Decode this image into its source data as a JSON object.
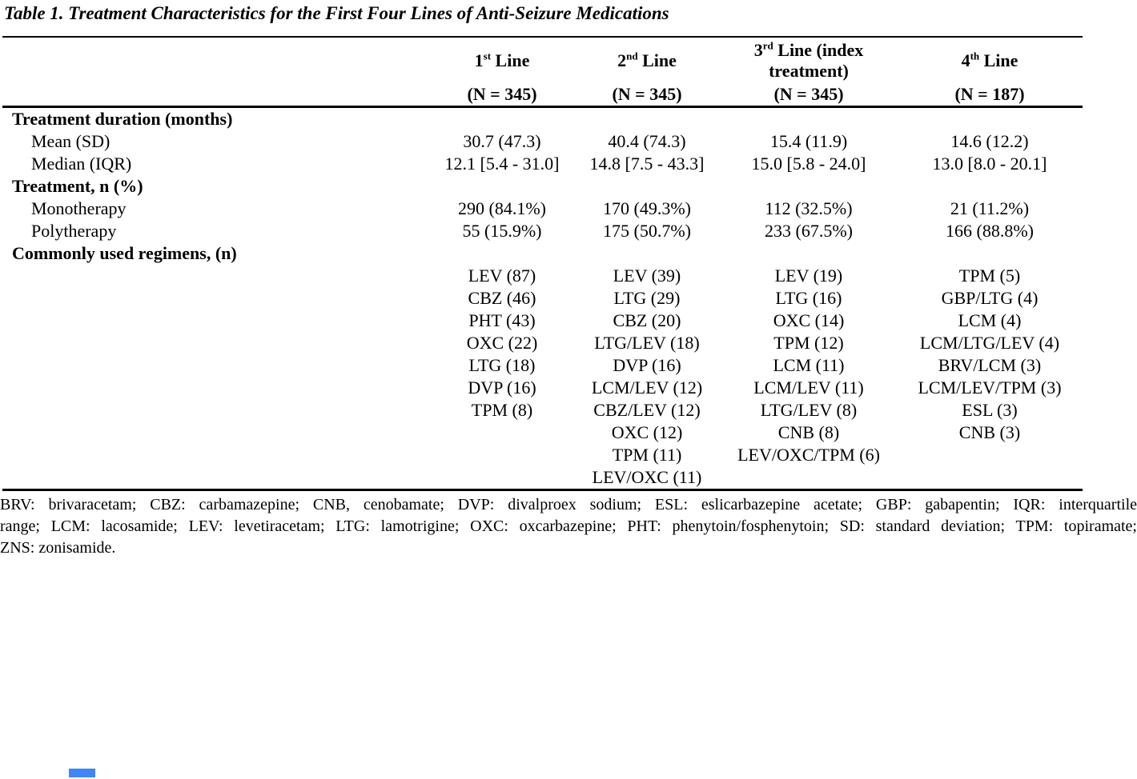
{
  "page": {
    "title": "Table 1. Treatment Characteristics for the First Four Lines of Anti-Seizure Medications"
  },
  "table": {
    "columns": [
      {
        "num": "1",
        "ord": "st",
        "label": "Line",
        "n": "(N = 345)"
      },
      {
        "num": "2",
        "ord": "nd",
        "label": "Line",
        "n": "(N = 345)"
      },
      {
        "num": "3",
        "ord": "rd",
        "label": "Line (index treatment)",
        "n": "(N = 345)"
      },
      {
        "num": "4",
        "ord": "th",
        "label": "Line",
        "n": "(N = 187)"
      }
    ],
    "rows": [
      {
        "label": "Treatment duration (months)",
        "style": "section",
        "values": [
          "",
          "",
          "",
          ""
        ]
      },
      {
        "label": "Mean (SD)",
        "style": "indent",
        "values": [
          "30.7 (47.3)",
          "40.4 (74.3)",
          "15.4 (11.9)",
          "14.6 (12.2)"
        ]
      },
      {
        "label": "Median (IQR)",
        "style": "indent",
        "values": [
          "12.1 [5.4 - 31.0]",
          "14.8 [7.5 - 43.3]",
          "15.0 [5.8 - 24.0]",
          "13.0 [8.0 - 20.1]"
        ]
      },
      {
        "label": "Treatment, n (%)",
        "style": "section",
        "values": [
          "",
          "",
          "",
          ""
        ]
      },
      {
        "label": "Monotherapy",
        "style": "indent",
        "values": [
          "290 (84.1%)",
          "170 (49.3%)",
          "112 (32.5%)",
          "21 (11.2%)"
        ]
      },
      {
        "label": "Polytherapy",
        "style": "indent",
        "values": [
          "55 (15.9%)",
          "175 (50.7%)",
          "233 (67.5%)",
          "166 (88.8%)"
        ]
      },
      {
        "label": "Commonly used regimens, (n)",
        "style": "section",
        "values": [
          "",
          "",
          "",
          ""
        ]
      },
      {
        "label": "",
        "style": "data",
        "values": [
          "LEV (87)",
          "LEV (39)",
          "LEV (19)",
          "TPM (5)"
        ]
      },
      {
        "label": "",
        "style": "data",
        "values": [
          "CBZ (46)",
          "LTG (29)",
          "LTG (16)",
          "GBP/LTG (4)"
        ]
      },
      {
        "label": "",
        "style": "data",
        "values": [
          "PHT (43)",
          "CBZ (20)",
          "OXC (14)",
          "LCM (4)"
        ]
      },
      {
        "label": "",
        "style": "data",
        "values": [
          "OXC (22)",
          "LTG/LEV (18)",
          "TPM (12)",
          "LCM/LTG/LEV (4)"
        ]
      },
      {
        "label": "",
        "style": "data",
        "values": [
          "LTG (18)",
          "DVP (16)",
          "LCM (11)",
          "BRV/LCM (3)"
        ]
      },
      {
        "label": "",
        "style": "data",
        "values": [
          "DVP (16)",
          "LCM/LEV (12)",
          "LCM/LEV (11)",
          "LCM/LEV/TPM (3)"
        ]
      },
      {
        "label": "",
        "style": "data",
        "values": [
          "TPM (8)",
          "CBZ/LEV (12)",
          "LTG/LEV (8)",
          "ESL (3)"
        ]
      },
      {
        "label": "",
        "style": "data",
        "values": [
          "",
          "OXC (12)",
          "CNB (8)",
          "CNB (3)"
        ]
      },
      {
        "label": "",
        "style": "data",
        "values": [
          "",
          "TPM (11)",
          "LEV/OXC/TPM (6)",
          ""
        ]
      },
      {
        "label": "",
        "style": "data",
        "values": [
          "",
          "LEV/OXC (11)",
          "",
          ""
        ]
      }
    ]
  },
  "footnote": {
    "lines": [
      "BRV: brivaracetam; CBZ: carbamazepine; CNB, cenobamate; DVP: divalproex sodium; ESL: eslicarbazepine acetate; GBP: gabapentin; IQR: interquartile",
      "range; LCM: lacosamide; LEV: levetiracetam; LTG: lamotrigine; OXC: oxcarbazepine; PHT: phenytoin/fosphenytoin; SD: standard deviation; TPM: topiramate;",
      "ZNS: zonisamide."
    ]
  },
  "scrollbar": {
    "thumb_color": "#4285f4"
  }
}
